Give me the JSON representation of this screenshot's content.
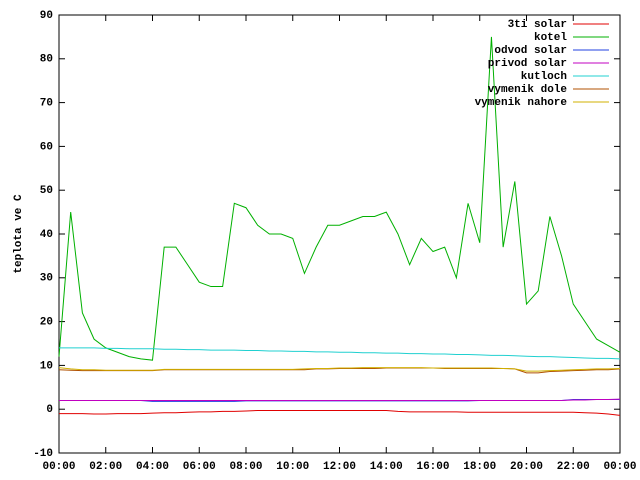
{
  "chart_data": {
    "type": "line",
    "ylabel": "teplota ve C",
    "x": [
      0,
      0.5,
      1,
      1.5,
      2,
      2.5,
      3,
      3.5,
      4,
      4.5,
      5,
      5.5,
      6,
      6.5,
      7,
      7.5,
      8,
      8.5,
      9,
      9.5,
      10,
      10.5,
      11,
      11.5,
      12,
      12.5,
      13,
      13.5,
      14,
      14.5,
      15,
      15.5,
      16,
      16.5,
      17,
      17.5,
      18,
      18.5,
      19,
      19.5,
      20,
      20.5,
      21,
      21.5,
      22,
      22.5,
      23,
      23.5,
      24
    ],
    "xlim": [
      0,
      24
    ],
    "xticks": [
      {
        "value": 0,
        "label": "00:00"
      },
      {
        "value": 2,
        "label": "02:00"
      },
      {
        "value": 4,
        "label": "04:00"
      },
      {
        "value": 6,
        "label": "06:00"
      },
      {
        "value": 8,
        "label": "08:00"
      },
      {
        "value": 10,
        "label": "10:00"
      },
      {
        "value": 12,
        "label": "12:00"
      },
      {
        "value": 14,
        "label": "14:00"
      },
      {
        "value": 16,
        "label": "16:00"
      },
      {
        "value": 18,
        "label": "18:00"
      },
      {
        "value": 20,
        "label": "20:00"
      },
      {
        "value": 22,
        "label": "22:00"
      },
      {
        "value": 24,
        "label": "00:00"
      }
    ],
    "ylim": [
      -10,
      90
    ],
    "yticks": [
      -10,
      0,
      10,
      20,
      30,
      40,
      50,
      60,
      70,
      80,
      90
    ],
    "legend": "top-right",
    "series": [
      {
        "name": "3ti solar",
        "color": "#e00000",
        "values": [
          -1,
          -1,
          -1,
          -1.1,
          -1.1,
          -1,
          -1,
          -1,
          -0.9,
          -0.8,
          -0.8,
          -0.7,
          -0.6,
          -0.6,
          -0.5,
          -0.5,
          -0.4,
          -0.3,
          -0.3,
          -0.3,
          -0.3,
          -0.3,
          -0.3,
          -0.3,
          -0.3,
          -0.3,
          -0.3,
          -0.3,
          -0.3,
          -0.5,
          -0.6,
          -0.6,
          -0.6,
          -0.6,
          -0.6,
          -0.7,
          -0.7,
          -0.7,
          -0.7,
          -0.7,
          -0.7,
          -0.7,
          -0.7,
          -0.7,
          -0.7,
          -0.8,
          -0.9,
          -1.1,
          -1.4
        ]
      },
      {
        "name": "kotel",
        "color": "#00b000",
        "values": [
          12,
          45,
          22,
          16,
          14,
          13,
          12,
          11.5,
          11.2,
          37,
          37,
          33,
          29,
          28,
          28,
          47,
          46,
          42,
          40,
          40,
          39,
          31,
          37,
          42,
          42,
          43,
          44,
          44,
          45,
          40,
          33,
          39,
          36,
          37,
          30,
          47,
          38,
          85,
          37,
          52,
          24,
          27,
          44,
          35,
          24,
          20,
          16,
          14.5,
          13
        ]
      },
      {
        "name": "odvod solar",
        "color": "#2040e0",
        "values": [
          2,
          2,
          2,
          2,
          2,
          2,
          2,
          2,
          1.8,
          1.8,
          1.8,
          1.8,
          1.8,
          1.8,
          1.8,
          1.8,
          1.9,
          1.9,
          1.9,
          1.9,
          1.9,
          1.9,
          1.9,
          1.9,
          1.9,
          1.9,
          1.9,
          1.9,
          1.9,
          1.9,
          1.9,
          1.9,
          1.9,
          1.9,
          1.9,
          1.9,
          2,
          2,
          2,
          2,
          2,
          2,
          2,
          2,
          2.2,
          2.2,
          2.2,
          2.2,
          2.2
        ]
      },
      {
        "name": "privod solar",
        "color": "#c000c0",
        "values": [
          2,
          2,
          2,
          2,
          2,
          2,
          2,
          2,
          2,
          2,
          2,
          2,
          2,
          2,
          2,
          2,
          2,
          2,
          2,
          2,
          2,
          2,
          2,
          2,
          2,
          2,
          2,
          2,
          2,
          2,
          2,
          2,
          2,
          2,
          2,
          2,
          2,
          2,
          2,
          2,
          2,
          2,
          2,
          2,
          2.1,
          2.1,
          2.2,
          2.2,
          2.3
        ]
      },
      {
        "name": "kutloch",
        "color": "#20d0d0",
        "values": [
          14,
          14,
          14,
          14,
          13.9,
          13.9,
          13.8,
          13.8,
          13.8,
          13.7,
          13.7,
          13.6,
          13.6,
          13.5,
          13.5,
          13.5,
          13.4,
          13.4,
          13.3,
          13.3,
          13.2,
          13.2,
          13.1,
          13.1,
          13,
          13,
          12.9,
          12.9,
          12.8,
          12.8,
          12.7,
          12.7,
          12.6,
          12.6,
          12.5,
          12.5,
          12.4,
          12.3,
          12.3,
          12.2,
          12.1,
          12,
          12,
          11.9,
          11.8,
          11.7,
          11.6,
          11.6,
          11.5
        ]
      },
      {
        "name": "vymenik dole",
        "color": "#b05000",
        "values": [
          9,
          8.9,
          8.8,
          8.8,
          8.8,
          8.8,
          8.8,
          8.8,
          8.8,
          9,
          9,
          9,
          9,
          9,
          9,
          9,
          9,
          9,
          9,
          9,
          9,
          9,
          9.2,
          9.2,
          9.3,
          9.3,
          9.3,
          9.3,
          9.4,
          9.4,
          9.4,
          9.4,
          9.4,
          9.3,
          9.3,
          9.3,
          9.3,
          9.3,
          9.3,
          9.2,
          8.3,
          8.3,
          8.6,
          8.7,
          8.8,
          8.9,
          9,
          9,
          9.2
        ]
      },
      {
        "name": "vymenik nahore",
        "color": "#d0b000",
        "values": [
          9.5,
          9.2,
          9,
          9,
          8.9,
          8.9,
          8.9,
          8.9,
          8.9,
          9.1,
          9.1,
          9.1,
          9.1,
          9.1,
          9.1,
          9.1,
          9.1,
          9.1,
          9.1,
          9.1,
          9.1,
          9.2,
          9.3,
          9.3,
          9.4,
          9.4,
          9.5,
          9.5,
          9.5,
          9.5,
          9.5,
          9.5,
          9.4,
          9.4,
          9.4,
          9.4,
          9.4,
          9.4,
          9.3,
          9.2,
          8.7,
          8.7,
          8.8,
          8.9,
          9,
          9.1,
          9.2,
          9.2,
          9.3
        ]
      }
    ]
  }
}
